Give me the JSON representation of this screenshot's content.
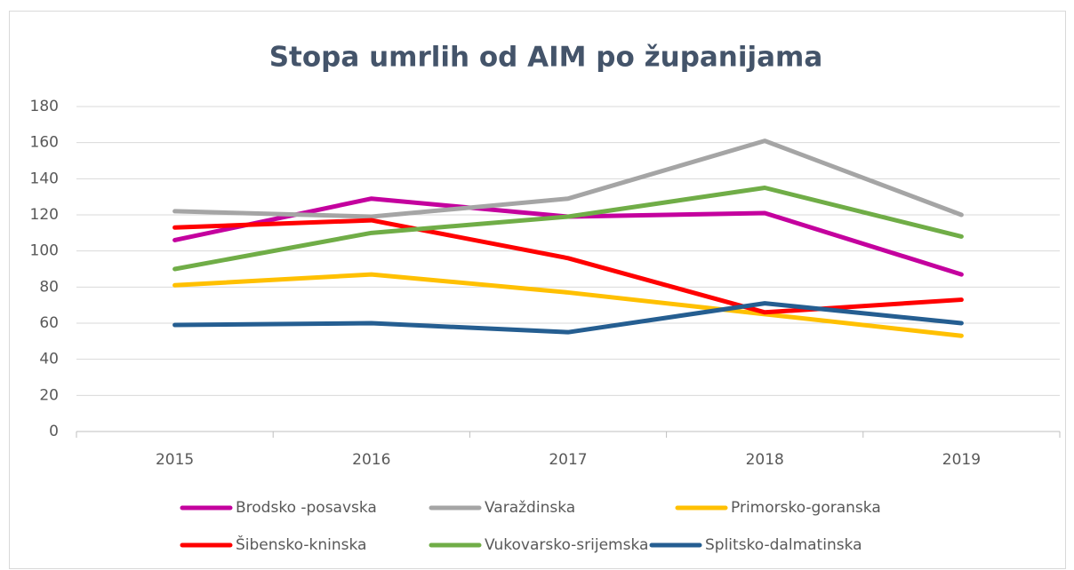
{
  "chart_data": {
    "type": "line",
    "title": "Stopa umrlih od AIM po županijama",
    "categories": [
      "2015",
      "2016",
      "2017",
      "2018",
      "2019"
    ],
    "series": [
      {
        "name": "Brodsko -posavska",
        "color": "#c4009e",
        "values": [
          106,
          129,
          119,
          121,
          87
        ]
      },
      {
        "name": "Varaždinska",
        "color": "#a5a5a5",
        "values": [
          122,
          119,
          129,
          161,
          120
        ]
      },
      {
        "name": "Primorsko-goranska",
        "color": "#ffc000",
        "values": [
          81,
          87,
          77,
          65,
          53
        ]
      },
      {
        "name": "Šibensko-kninska",
        "color": "#ff0000",
        "values": [
          113,
          117,
          96,
          66,
          73
        ]
      },
      {
        "name": "Vukovarsko-srijemska",
        "color": "#70ad47",
        "values": [
          90,
          110,
          119,
          135,
          108
        ]
      },
      {
        "name": "Splitsko-dalmatinska",
        "color": "#255e91",
        "values": [
          59,
          60,
          55,
          71,
          60
        ]
      }
    ],
    "ylim": [
      0,
      180
    ],
    "yticks": [
      0,
      20,
      40,
      60,
      80,
      100,
      120,
      140,
      160,
      180
    ],
    "grid": true,
    "legend": "bottom"
  }
}
